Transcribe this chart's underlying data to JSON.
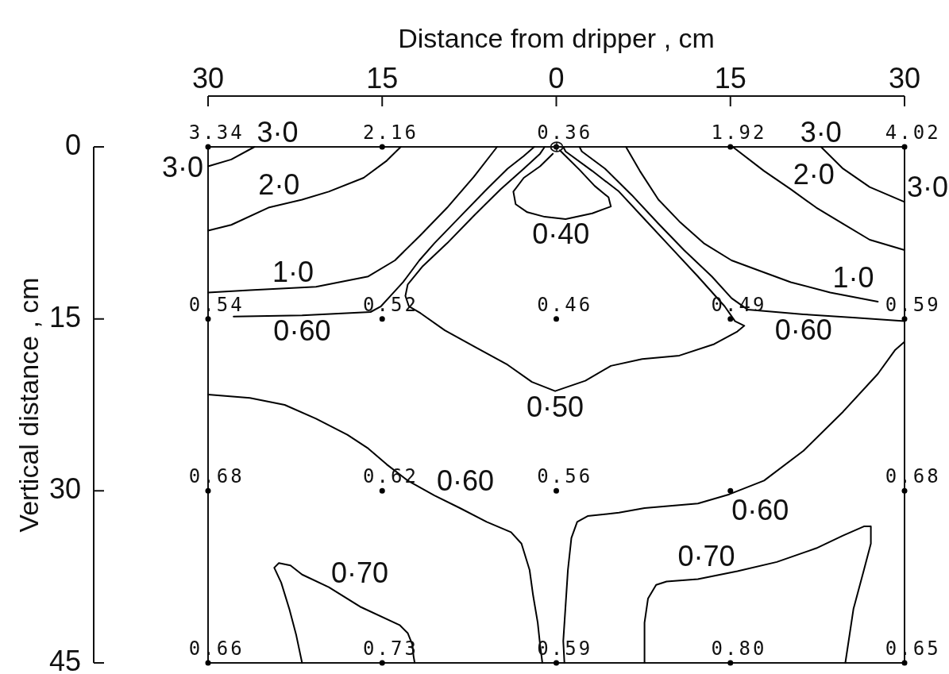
{
  "chart_data": {
    "type": "line",
    "xlabel": "Distance from dripper , cm",
    "ylabel": "Vertical distance , cm",
    "xlim": [
      -30,
      30
    ],
    "xticks": [
      {
        "value": -30,
        "label": "30"
      },
      {
        "value": -15,
        "label": "15"
      },
      0,
      15,
      30
    ],
    "ylim": [
      45,
      0
    ],
    "yticks": [
      0,
      15,
      30,
      45
    ],
    "series": [
      {
        "type": "scatter",
        "marker": "circle",
        "color": "#000000",
        "x": [
          -30,
          -15,
          0,
          15,
          30,
          -30,
          -15,
          0,
          15,
          30,
          -30,
          -15,
          0,
          15,
          30,
          -30,
          -15,
          0,
          15,
          30
        ],
        "values": [
          0,
          0,
          0,
          0,
          0,
          15,
          15,
          15,
          15,
          15,
          30,
          30,
          30,
          30,
          30,
          45,
          45,
          45,
          45,
          45
        ]
      },
      {
        "color": "#000000",
        "x": [
          -30,
          -28,
          -26
        ],
        "values": [
          1.7,
          1.1,
          0
        ]
      },
      {
        "color": "#000000",
        "x": [
          -30,
          -28,
          -24.8,
          -21.9,
          -19.6,
          -16.6,
          -14.6,
          -13.4
        ],
        "values": [
          7.3,
          6.8,
          5.3,
          4.6,
          3.9,
          2.7,
          1.2,
          0
        ]
      },
      {
        "color": "#000000",
        "x": [
          -30,
          -26.4,
          -20.7,
          -16.2,
          -13.9,
          -11.7,
          -9.4,
          -7.1,
          -5.1
        ],
        "values": [
          12.7,
          12.5,
          12.2,
          11.3,
          9.9,
          7.7,
          5.3,
          2.6,
          0
        ]
      },
      {
        "color": "#000000",
        "x": [
          -27.8,
          -21.9,
          -16.0,
          -15.1,
          -14.2,
          -13.2,
          -11.8,
          -10.5,
          -8.2,
          -6.0,
          -4.2,
          -2.8,
          -1.9
        ],
        "values": [
          14.8,
          14.7,
          14.4,
          13.9,
          12.9,
          11.8,
          9.9,
          8.4,
          6.0,
          3.7,
          1.9,
          0.8,
          0
        ]
      },
      {
        "color": "#000000",
        "x": [
          -1.0,
          -1.4,
          -2.8,
          -4.8,
          -7.1,
          -9.4,
          -11.5,
          -12.8,
          -13.0,
          -12.7,
          -11.7,
          -9.6,
          -6.9,
          -4.2,
          -2.1,
          -0.1,
          2.5,
          4.7,
          7.4,
          10.6,
          13.6,
          15.6,
          16.2,
          15.4,
          14.5,
          12.2,
          9.9,
          7.6,
          5.4,
          3.1,
          0.8,
          0.6
        ],
        "values": [
          0,
          0.6,
          1.9,
          3.7,
          6.0,
          8.4,
          10.4,
          12.0,
          13.0,
          13.9,
          14.5,
          16.0,
          17.5,
          19.0,
          20.5,
          21.3,
          20.4,
          19.1,
          18.5,
          18.2,
          17.2,
          16.1,
          15.6,
          15.2,
          13.9,
          11.3,
          8.8,
          6.3,
          3.9,
          2.1,
          0.4,
          0
        ]
      },
      {
        "color": "#000000",
        "x": [
          -0.3,
          -1.4,
          -2.8,
          -3.7,
          -3.5,
          -2.5,
          -1.0,
          0.8,
          3.1,
          4.7,
          4.5,
          3.3,
          2.0,
          0.8,
          0.3
        ],
        "values": [
          0.6,
          1.7,
          2.7,
          3.9,
          5.0,
          5.7,
          6.1,
          6.3,
          5.8,
          5.2,
          4.4,
          3.4,
          2.0,
          0.8,
          0.3
        ]
      },
      {
        "color": "#000000",
        "x": [
          2.0,
          2.2,
          4.2,
          6.5,
          8.8,
          11.0,
          13.4,
          15.1,
          16.5,
          21.3,
          25.8,
          30
        ],
        "values": [
          0,
          0.4,
          1.9,
          4.2,
          6.7,
          9.0,
          11.3,
          13.2,
          14.2,
          14.6,
          14.9,
          15.2
        ]
      },
      {
        "color": "#000000",
        "x": [
          6.0,
          7.2,
          8.8,
          10.6,
          12.7,
          15.1,
          17.5,
          20.2,
          23.6,
          27.7
        ],
        "values": [
          0,
          2.1,
          4.6,
          6.5,
          8.4,
          9.9,
          10.8,
          11.8,
          12.7,
          13.5
        ]
      },
      {
        "color": "#000000",
        "x": [
          15.2,
          17.9,
          20.2,
          22.4,
          24.7,
          27.0,
          30
        ],
        "values": [
          0,
          2.1,
          3.7,
          5.3,
          6.7,
          8.1,
          9.0
        ]
      },
      {
        "color": "#000000",
        "x": [
          22.8,
          24.7,
          27.0,
          30
        ],
        "values": [
          0,
          1.9,
          3.5,
          4.8
        ]
      },
      {
        "color": "#000000",
        "x": [
          -30,
          -26.4,
          -23.4,
          -20.7,
          -18.0,
          -16.2,
          -14.6,
          -12.8,
          -10.5,
          -8.3,
          -6.0,
          -3.9,
          -3.0,
          -2.3,
          -2.0,
          -1.6,
          -1.4,
          -1.2
        ],
        "values": [
          21.6,
          21.9,
          22.5,
          23.7,
          25.1,
          26.3,
          27.7,
          29.1,
          30.4,
          31.5,
          32.7,
          33.6,
          34.6,
          36.9,
          39.1,
          41.5,
          43.4,
          45
        ]
      },
      {
        "color": "#000000",
        "x": [
          0.7,
          0.6,
          1.0,
          1.3,
          1.8,
          2.7,
          5.4,
          7.6,
          12.2,
          14.9,
          17.9,
          21.3,
          24.7,
          27.7,
          29.2,
          30
        ],
        "values": [
          45,
          43.1,
          36.9,
          34.1,
          32.7,
          32.2,
          31.9,
          31.5,
          31.1,
          30.3,
          29.1,
          26.5,
          23.1,
          19.8,
          17.7,
          17.0
        ]
      },
      {
        "color": "#000000",
        "x": [
          -21.9,
          -22.4,
          -23.0,
          -23.7,
          -24.3,
          -23.9,
          -22.9,
          -21.9,
          -19.6,
          -16.9,
          -13.5,
          -12.8,
          -12.4,
          -12.3,
          -12.2
        ],
        "values": [
          45,
          42.6,
          40.3,
          38.0,
          36.7,
          36.3,
          36.5,
          37.3,
          38.4,
          40.1,
          41.7,
          42.4,
          43.4,
          44.4,
          45
        ]
      },
      {
        "color": "#000000",
        "x": [
          7.6,
          7.6,
          7.9,
          8.6,
          9.5,
          12.2,
          15.6,
          19.0,
          22.4,
          24.7,
          26.5,
          27.1,
          27.1,
          26.5,
          25.6,
          24.9
        ],
        "values": [
          45,
          41.5,
          39.4,
          38.2,
          37.9,
          37.7,
          37.0,
          36.2,
          35.0,
          33.9,
          33.1,
          33.1,
          34.6,
          36.9,
          40.3,
          45
        ]
      }
    ],
    "annotations": [
      {
        "text": "3.34",
        "x": -30,
        "y": 0
      },
      {
        "text": "2.16",
        "x": -15,
        "y": 0
      },
      {
        "text": "0.36",
        "x": 0,
        "y": 0
      },
      {
        "text": "1.92",
        "x": 15,
        "y": 0
      },
      {
        "text": "4.02",
        "x": 30,
        "y": 0
      },
      {
        "text": "0.54",
        "x": -30,
        "y": 15
      },
      {
        "text": "0.52",
        "x": -15,
        "y": 15
      },
      {
        "text": "0.46",
        "x": 0,
        "y": 15
      },
      {
        "text": "0.49",
        "x": 15,
        "y": 15
      },
      {
        "text": "0.59",
        "x": 30,
        "y": 15
      },
      {
        "text": "0.68",
        "x": -30,
        "y": 30
      },
      {
        "text": "0.62",
        "x": -15,
        "y": 30
      },
      {
        "text": "0.56",
        "x": 0,
        "y": 30
      },
      {
        "text": "0.68",
        "x": 30,
        "y": 30
      },
      {
        "text": "0.66",
        "x": -30,
        "y": 45
      },
      {
        "text": "0.73",
        "x": -15,
        "y": 45
      },
      {
        "text": "0.59",
        "x": 0,
        "y": 45
      },
      {
        "text": "0.80",
        "x": 15,
        "y": 45
      },
      {
        "text": "0.65",
        "x": 30,
        "y": 45
      },
      {
        "text": "3·0",
        "x": -30,
        "y": 1.7
      },
      {
        "text": "3·0",
        "x": -26,
        "y": 0
      },
      {
        "text": "2·0",
        "x": -21.9,
        "y": 4.6
      },
      {
        "text": "1·0",
        "x": -20.7,
        "y": 12.2
      },
      {
        "text": "0·60",
        "x": -21.9,
        "y": 14.7
      },
      {
        "text": "0·40",
        "x": 0.4,
        "y": 6.2
      },
      {
        "text": "3·0",
        "x": 22.8,
        "y": 0
      },
      {
        "text": "2·0",
        "x": 20.2,
        "y": 3.7
      },
      {
        "text": "3·0",
        "x": 30,
        "y": 4.8
      },
      {
        "text": "1·0",
        "x": 23.6,
        "y": 12.7
      },
      {
        "text": "0·60",
        "x": 21.3,
        "y": 14.6
      },
      {
        "text": "0·50",
        "x": -0.1,
        "y": 21.3
      },
      {
        "text": "0·60",
        "x": -10.5,
        "y": 30.4
      },
      {
        "text": "0·60",
        "x": 14.9,
        "y": 30.3
      },
      {
        "text": "0·70",
        "x": -19.6,
        "y": 38.4
      },
      {
        "text": "0·70",
        "x": 15.6,
        "y": 37.0
      }
    ]
  }
}
